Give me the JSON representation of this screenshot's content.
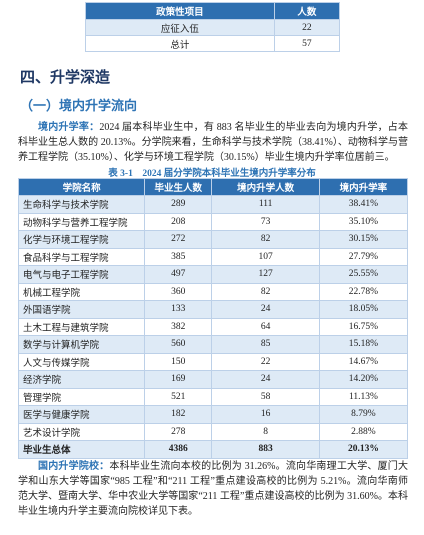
{
  "top_table": {
    "headers": [
      "政策性项目",
      "人数"
    ],
    "rows": [
      [
        "应征入伍",
        "22"
      ],
      [
        "总计",
        "57"
      ]
    ]
  },
  "heading": "四、升学深造",
  "subheading": "（一）境内升学流向",
  "paragraph1": {
    "label": "境内升学率：",
    "text": "2024 届本科毕业生中，有 883 名毕业生的毕业去向为境内升学，占本科毕业生总人数的 20.13%。分学院来看，生命科学与技术学院（38.41%）、动物科学与营养工程学院（35.10%）、化学与环境工程学院（30.15%）毕业生境内升学率位居前三。"
  },
  "caption": "表 3-1　2024 届分学院本科毕业生境内升学率分布",
  "table": {
    "headers": [
      "学院名称",
      "毕业生人数",
      "境内升学人数",
      "境内升学率"
    ],
    "rows": [
      [
        "生命科学与技术学院",
        "289",
        "111",
        "38.41%"
      ],
      [
        "动物科学与营养工程学院",
        "208",
        "73",
        "35.10%"
      ],
      [
        "化学与环境工程学院",
        "272",
        "82",
        "30.15%"
      ],
      [
        "食品科学与工程学院",
        "385",
        "107",
        "27.79%"
      ],
      [
        "电气与电子工程学院",
        "497",
        "127",
        "25.55%"
      ],
      [
        "机械工程学院",
        "360",
        "82",
        "22.78%"
      ],
      [
        "外国语学院",
        "133",
        "24",
        "18.05%"
      ],
      [
        "土木工程与建筑学院",
        "382",
        "64",
        "16.75%"
      ],
      [
        "数学与计算机学院",
        "560",
        "85",
        "15.18%"
      ],
      [
        "人文与传媒学院",
        "150",
        "22",
        "14.67%"
      ],
      [
        "经济学院",
        "169",
        "24",
        "14.20%"
      ],
      [
        "管理学院",
        "521",
        "58",
        "11.13%"
      ],
      [
        "医学与健康学院",
        "182",
        "16",
        "8.79%"
      ],
      [
        "艺术设计学院",
        "278",
        "8",
        "2.88%"
      ],
      [
        "毕业生总体",
        "4386",
        "883",
        "20.13%"
      ]
    ]
  },
  "paragraph2": {
    "label": "国内升学院校：",
    "text": "本科毕业生流向本校的比例为 31.26%。流向华南理工大学、厦门大学和山东大学等国家“985 工程”和“211 工程”重点建设高校的比例为 5.21%。流向华南师范大学、暨南大学、华中农业大学等国家“211 工程”重点建设高校的比例为 31.60%。本科毕业生境内升学主要流向院校详见下表。"
  }
}
